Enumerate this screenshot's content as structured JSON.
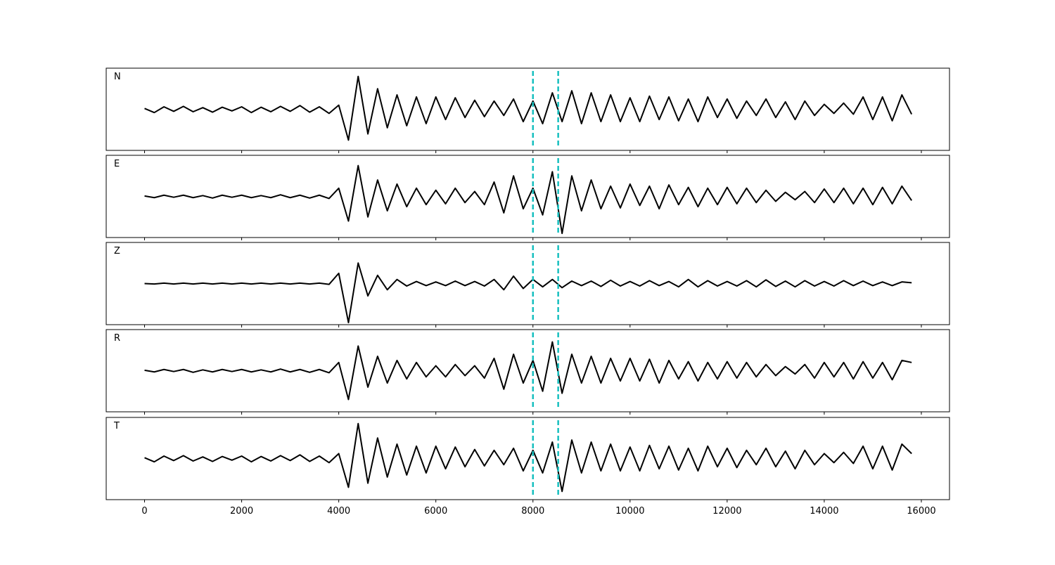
{
  "chart_data": {
    "type": "line",
    "x": [
      0,
      200,
      400,
      600,
      800,
      1000,
      1200,
      1400,
      1600,
      1800,
      2000,
      2200,
      2400,
      2600,
      2800,
      3000,
      3200,
      3400,
      3600,
      3800,
      4000,
      4200,
      4400,
      4600,
      4800,
      5000,
      5200,
      5400,
      5600,
      5800,
      6000,
      6200,
      6400,
      6600,
      6800,
      7000,
      7200,
      7400,
      7600,
      7800,
      8000,
      8200,
      8400,
      8600,
      8800,
      9000,
      9200,
      9400,
      9600,
      9800,
      10000,
      10200,
      10400,
      10600,
      10800,
      11000,
      11200,
      11400,
      11600,
      11800,
      12000,
      12200,
      12400,
      12600,
      12800,
      13000,
      13200,
      13400,
      13600,
      13800,
      14000,
      14200,
      14400,
      14600,
      14800,
      15000,
      15200,
      15400,
      15600,
      15800
    ],
    "xlim": [
      -790,
      16580
    ],
    "xticks": [
      0,
      2000,
      4000,
      6000,
      8000,
      10000,
      12000,
      14000,
      16000
    ],
    "ylim": [
      -1,
      1
    ],
    "markers": [
      8000,
      8520
    ],
    "marker_color": "#17bfbf",
    "line_color": "#000000",
    "panels": [
      {
        "name": "N",
        "values": [
          0.02,
          -0.08,
          0.06,
          -0.05,
          0.07,
          -0.06,
          0.04,
          -0.07,
          0.05,
          -0.04,
          0.06,
          -0.08,
          0.05,
          -0.06,
          0.07,
          -0.05,
          0.09,
          -0.07,
          0.06,
          -0.1,
          0.1,
          -0.75,
          0.8,
          -0.6,
          0.5,
          -0.45,
          0.35,
          -0.4,
          0.3,
          -0.35,
          0.3,
          -0.25,
          0.28,
          -0.2,
          0.22,
          -0.18,
          0.2,
          -0.15,
          0.25,
          -0.3,
          0.2,
          -0.35,
          0.4,
          -0.3,
          0.45,
          -0.35,
          0.4,
          -0.3,
          0.35,
          -0.3,
          0.28,
          -0.3,
          0.32,
          -0.25,
          0.3,
          -0.28,
          0.25,
          -0.3,
          0.3,
          -0.2,
          0.25,
          -0.22,
          0.2,
          -0.15,
          0.25,
          -0.2,
          0.18,
          -0.25,
          0.2,
          -0.15,
          0.12,
          -0.1,
          0.15,
          -0.12,
          0.3,
          -0.25,
          0.3,
          -0.28,
          0.35,
          -0.12
        ]
      },
      {
        "name": "E",
        "values": [
          0.01,
          -0.03,
          0.03,
          -0.02,
          0.03,
          -0.03,
          0.02,
          -0.04,
          0.03,
          -0.02,
          0.03,
          -0.03,
          0.02,
          -0.03,
          0.04,
          -0.03,
          0.03,
          -0.04,
          0.03,
          -0.05,
          0.2,
          -0.6,
          0.75,
          -0.5,
          0.4,
          -0.35,
          0.3,
          -0.25,
          0.2,
          -0.2,
          0.15,
          -0.18,
          0.2,
          -0.15,
          0.12,
          -0.2,
          0.35,
          -0.4,
          0.5,
          -0.3,
          0.2,
          -0.45,
          0.6,
          -0.9,
          0.5,
          -0.35,
          0.4,
          -0.3,
          0.25,
          -0.28,
          0.3,
          -0.22,
          0.25,
          -0.3,
          0.28,
          -0.2,
          0.22,
          -0.25,
          0.2,
          -0.2,
          0.22,
          -0.18,
          0.2,
          -0.15,
          0.15,
          -0.12,
          0.1,
          -0.08,
          0.12,
          -0.15,
          0.18,
          -0.15,
          0.2,
          -0.18,
          0.2,
          -0.2,
          0.22,
          -0.18,
          0.25,
          -0.1
        ]
      },
      {
        "name": "Z",
        "values": [
          0.0,
          -0.01,
          0.01,
          -0.01,
          0.01,
          -0.01,
          0.01,
          -0.01,
          0.01,
          -0.01,
          0.01,
          -0.01,
          0.01,
          -0.01,
          0.01,
          -0.01,
          0.01,
          -0.01,
          0.01,
          -0.02,
          0.25,
          -0.95,
          0.5,
          -0.3,
          0.2,
          -0.15,
          0.1,
          -0.06,
          0.05,
          -0.05,
          0.04,
          -0.05,
          0.06,
          -0.05,
          0.05,
          -0.06,
          0.1,
          -0.15,
          0.18,
          -0.12,
          0.1,
          -0.08,
          0.1,
          -0.1,
          0.06,
          -0.05,
          0.06,
          -0.07,
          0.08,
          -0.06,
          0.05,
          -0.06,
          0.07,
          -0.05,
          0.05,
          -0.08,
          0.1,
          -0.08,
          0.07,
          -0.06,
          0.05,
          -0.06,
          0.07,
          -0.08,
          0.09,
          -0.07,
          0.06,
          -0.08,
          0.07,
          -0.06,
          0.05,
          -0.06,
          0.07,
          -0.05,
          0.06,
          -0.05,
          0.04,
          -0.05,
          0.04,
          0.02
        ]
      },
      {
        "name": "R",
        "values": [
          0.01,
          -0.03,
          0.03,
          -0.02,
          0.03,
          -0.04,
          0.02,
          -0.03,
          0.03,
          -0.02,
          0.03,
          -0.03,
          0.02,
          -0.03,
          0.04,
          -0.03,
          0.03,
          -0.04,
          0.03,
          -0.05,
          0.2,
          -0.7,
          0.6,
          -0.4,
          0.35,
          -0.3,
          0.25,
          -0.2,
          0.2,
          -0.15,
          0.12,
          -0.15,
          0.15,
          -0.12,
          0.12,
          -0.18,
          0.3,
          -0.45,
          0.4,
          -0.3,
          0.25,
          -0.5,
          0.7,
          -0.55,
          0.4,
          -0.3,
          0.35,
          -0.3,
          0.3,
          -0.25,
          0.3,
          -0.25,
          0.28,
          -0.3,
          0.25,
          -0.2,
          0.22,
          -0.25,
          0.2,
          -0.2,
          0.22,
          -0.18,
          0.2,
          -0.15,
          0.15,
          -0.12,
          0.1,
          -0.08,
          0.15,
          -0.18,
          0.2,
          -0.15,
          0.2,
          -0.2,
          0.22,
          -0.18,
          0.2,
          -0.22,
          0.25,
          0.2
        ]
      },
      {
        "name": "T",
        "values": [
          0.02,
          -0.08,
          0.06,
          -0.05,
          0.07,
          -0.06,
          0.04,
          -0.07,
          0.05,
          -0.04,
          0.06,
          -0.08,
          0.05,
          -0.06,
          0.07,
          -0.05,
          0.09,
          -0.07,
          0.06,
          -0.1,
          0.12,
          -0.7,
          0.85,
          -0.6,
          0.5,
          -0.45,
          0.35,
          -0.4,
          0.3,
          -0.35,
          0.3,
          -0.25,
          0.28,
          -0.2,
          0.22,
          -0.18,
          0.2,
          -0.15,
          0.25,
          -0.3,
          0.2,
          -0.35,
          0.4,
          -0.8,
          0.45,
          -0.35,
          0.4,
          -0.3,
          0.35,
          -0.3,
          0.28,
          -0.3,
          0.32,
          -0.25,
          0.3,
          -0.28,
          0.25,
          -0.3,
          0.3,
          -0.2,
          0.25,
          -0.22,
          0.2,
          -0.15,
          0.25,
          -0.2,
          0.18,
          -0.25,
          0.2,
          -0.15,
          0.12,
          -0.1,
          0.15,
          -0.12,
          0.3,
          -0.25,
          0.3,
          -0.28,
          0.35,
          0.12
        ]
      }
    ]
  }
}
